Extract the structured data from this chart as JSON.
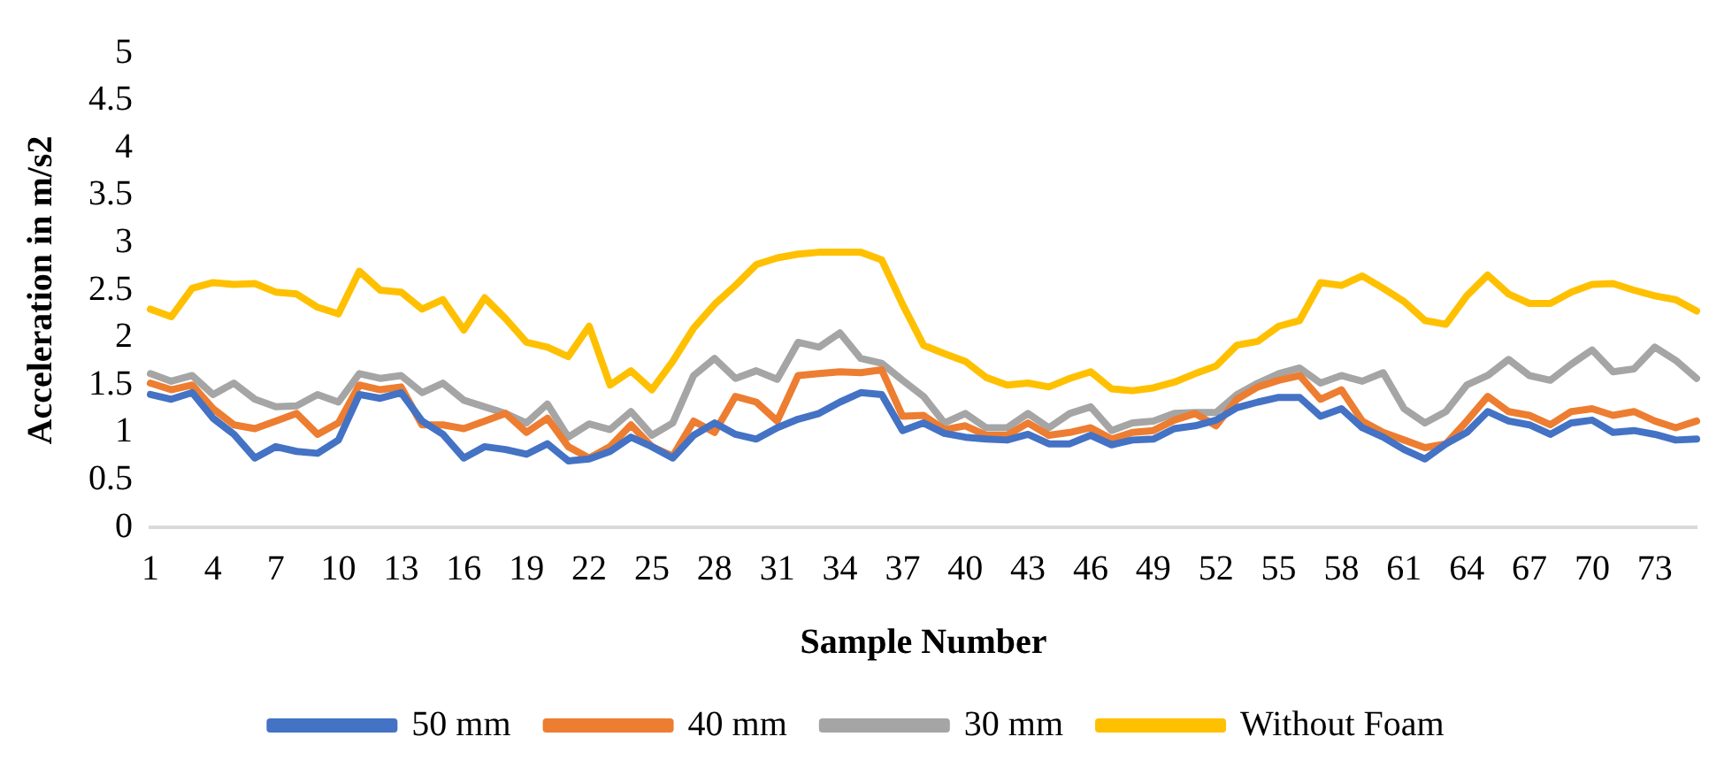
{
  "chart_data": {
    "type": "line",
    "xlabel": "Sample Number",
    "ylabel": "Acceleration in m/s2",
    "categories": [
      "1",
      null,
      null,
      "4",
      null,
      null,
      "7",
      null,
      null,
      "10",
      null,
      null,
      "13",
      null,
      null,
      "16",
      null,
      null,
      "19",
      null,
      null,
      "22",
      null,
      null,
      "25",
      null,
      null,
      "28",
      null,
      null,
      "31",
      null,
      null,
      "34",
      null,
      null,
      "37",
      null,
      null,
      "40",
      null,
      null,
      "43",
      null,
      null,
      "46",
      null,
      null,
      "49",
      null,
      null,
      "52",
      null,
      null,
      "55",
      null,
      null,
      "58",
      null,
      null,
      "61",
      null,
      null,
      "64",
      null,
      null,
      "67",
      null,
      null,
      "70",
      null,
      null,
      "73",
      null,
      null
    ],
    "ylim": [
      0,
      5
    ],
    "yticks": [
      0,
      0.5,
      1,
      1.5,
      2,
      2.5,
      3,
      3.5,
      4,
      4.5,
      5
    ],
    "grid": false,
    "legend": "bottom",
    "marker": "none",
    "line_style": "solid",
    "series": [
      {
        "name": "50 mm",
        "color": "#4472c4",
        "values": [
          1.4,
          1.35,
          1.42,
          1.15,
          0.98,
          0.73,
          0.85,
          0.8,
          0.78,
          0.92,
          1.4,
          1.36,
          1.42,
          1.12,
          0.98,
          0.73,
          0.85,
          0.82,
          0.77,
          0.88,
          0.7,
          0.72,
          0.8,
          0.95,
          0.85,
          0.73,
          0.97,
          1.1,
          0.98,
          0.93,
          1.05,
          1.14,
          1.2,
          1.32,
          1.42,
          1.4,
          1.02,
          1.1,
          0.99,
          0.95,
          0.93,
          0.92,
          0.98,
          0.88,
          0.88,
          0.97,
          0.87,
          0.92,
          0.93,
          1.04,
          1.07,
          1.13,
          1.26,
          1.32,
          1.37,
          1.37,
          1.17,
          1.25,
          1.05,
          0.95,
          0.82,
          0.72,
          0.88,
          1.0,
          1.22,
          1.12,
          1.08,
          0.98,
          1.1,
          1.13,
          1.0,
          1.02,
          0.98,
          0.92,
          0.93
        ]
      },
      {
        "name": "40 mm",
        "color": "#ed7d31",
        "values": [
          1.52,
          1.45,
          1.5,
          1.25,
          1.08,
          1.04,
          1.12,
          1.2,
          0.98,
          1.1,
          1.5,
          1.45,
          1.48,
          1.08,
          1.08,
          1.04,
          1.12,
          1.2,
          1.0,
          1.15,
          0.85,
          0.73,
          0.85,
          1.08,
          0.85,
          0.75,
          1.12,
          1.0,
          1.38,
          1.32,
          1.12,
          1.6,
          1.62,
          1.64,
          1.63,
          1.66,
          1.17,
          1.18,
          1.03,
          1.07,
          0.97,
          0.97,
          1.1,
          0.97,
          1.0,
          1.05,
          0.93,
          1.0,
          1.02,
          1.13,
          1.2,
          1.07,
          1.35,
          1.48,
          1.55,
          1.6,
          1.35,
          1.45,
          1.12,
          1.0,
          0.92,
          0.84,
          0.88,
          1.12,
          1.38,
          1.22,
          1.18,
          1.08,
          1.22,
          1.25,
          1.18,
          1.22,
          1.12,
          1.05,
          1.12
        ]
      },
      {
        "name": "30 mm",
        "color": "#a5a5a5",
        "values": [
          1.62,
          1.54,
          1.6,
          1.4,
          1.52,
          1.35,
          1.27,
          1.28,
          1.4,
          1.32,
          1.62,
          1.57,
          1.6,
          1.42,
          1.52,
          1.34,
          1.27,
          1.2,
          1.1,
          1.3,
          0.95,
          1.09,
          1.03,
          1.22,
          0.97,
          1.1,
          1.6,
          1.78,
          1.57,
          1.65,
          1.56,
          1.95,
          1.9,
          2.05,
          1.78,
          1.73,
          1.55,
          1.38,
          1.1,
          1.2,
          1.05,
          1.05,
          1.2,
          1.05,
          1.2,
          1.27,
          1.02,
          1.1,
          1.12,
          1.2,
          1.21,
          1.21,
          1.4,
          1.52,
          1.62,
          1.68,
          1.52,
          1.6,
          1.54,
          1.63,
          1.25,
          1.1,
          1.22,
          1.5,
          1.6,
          1.77,
          1.6,
          1.55,
          1.72,
          1.87,
          1.64,
          1.67,
          1.9,
          1.76,
          1.57
        ]
      },
      {
        "name": "Without Foam",
        "color": "#ffc000",
        "values": [
          2.3,
          2.22,
          2.52,
          2.58,
          2.56,
          2.57,
          2.48,
          2.46,
          2.32,
          2.25,
          2.7,
          2.5,
          2.48,
          2.3,
          2.4,
          2.08,
          2.42,
          2.2,
          1.95,
          1.9,
          1.8,
          2.12,
          1.5,
          1.65,
          1.45,
          1.75,
          2.1,
          2.35,
          2.55,
          2.77,
          2.84,
          2.88,
          2.9,
          2.9,
          2.9,
          2.82,
          2.35,
          1.92,
          1.83,
          1.75,
          1.58,
          1.5,
          1.52,
          1.48,
          1.57,
          1.64,
          1.46,
          1.44,
          1.47,
          1.53,
          1.62,
          1.7,
          1.92,
          1.96,
          2.12,
          2.18,
          2.58,
          2.55,
          2.65,
          2.52,
          2.38,
          2.18,
          2.14,
          2.44,
          2.66,
          2.46,
          2.36,
          2.36,
          2.48,
          2.56,
          2.57,
          2.5,
          2.44,
          2.4,
          2.28
        ]
      }
    ]
  }
}
